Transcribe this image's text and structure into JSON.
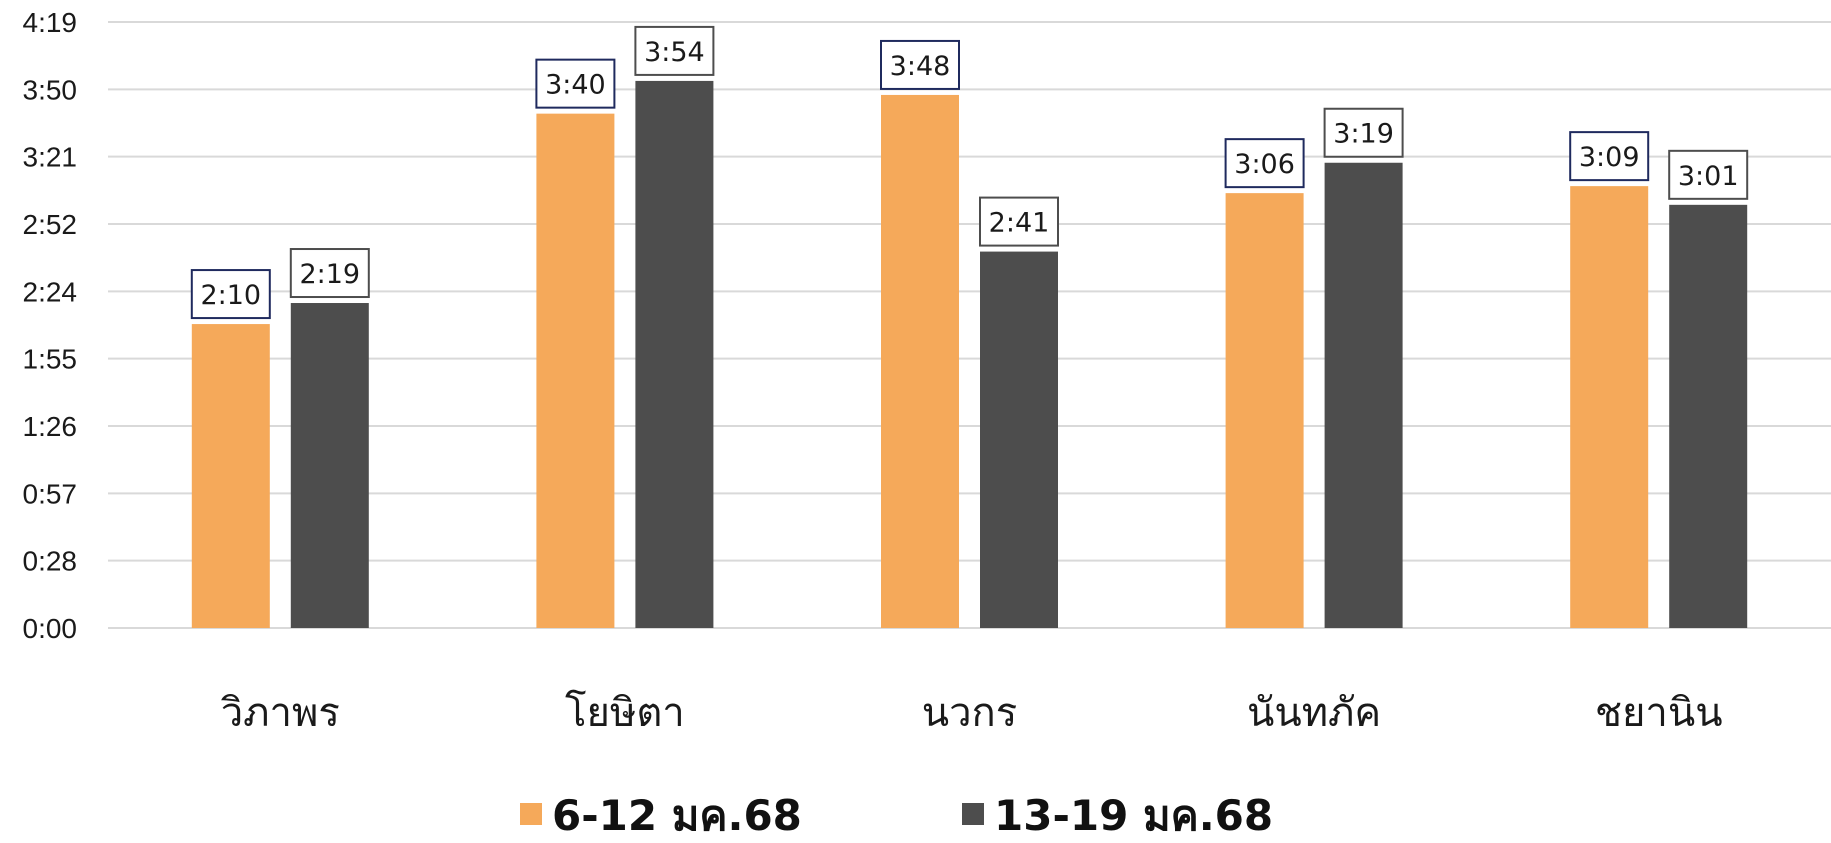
{
  "chart_data": {
    "type": "bar",
    "categories": [
      "วิภาพร",
      "โยษิตา",
      "นวกร",
      "นันทภัค",
      "ชยานิน"
    ],
    "series": [
      {
        "name": "6-12 มค.68",
        "color": "#F5A95A",
        "label_border": "#1F2A5E",
        "values": [
          130,
          220,
          228,
          186,
          189
        ],
        "labels": [
          "2:10",
          "3:40",
          "3:48",
          "3:06",
          "3:09"
        ]
      },
      {
        "name": "13-19 มค.68",
        "color": "#4D4D4D",
        "label_border": "#4D4D4D",
        "values": [
          139,
          234,
          161,
          199,
          181
        ],
        "labels": [
          "2:19",
          "3:54",
          "2:41",
          "3:19",
          "3:01"
        ]
      }
    ],
    "y_ticks": [
      "0:00",
      "0:28",
      "0:57",
      "1:26",
      "1:55",
      "2:24",
      "2:52",
      "3:21",
      "3:50",
      "4:19"
    ],
    "y_tick_values": [
      0,
      28.8,
      57.6,
      86.4,
      115.2,
      144,
      172.8,
      201.6,
      230.4,
      259.2
    ],
    "ylim": [
      0,
      259.2
    ],
    "y_unit": "minutes",
    "grid": true,
    "gridline_color": "#D9D9D9",
    "legend_position": "bottom"
  }
}
